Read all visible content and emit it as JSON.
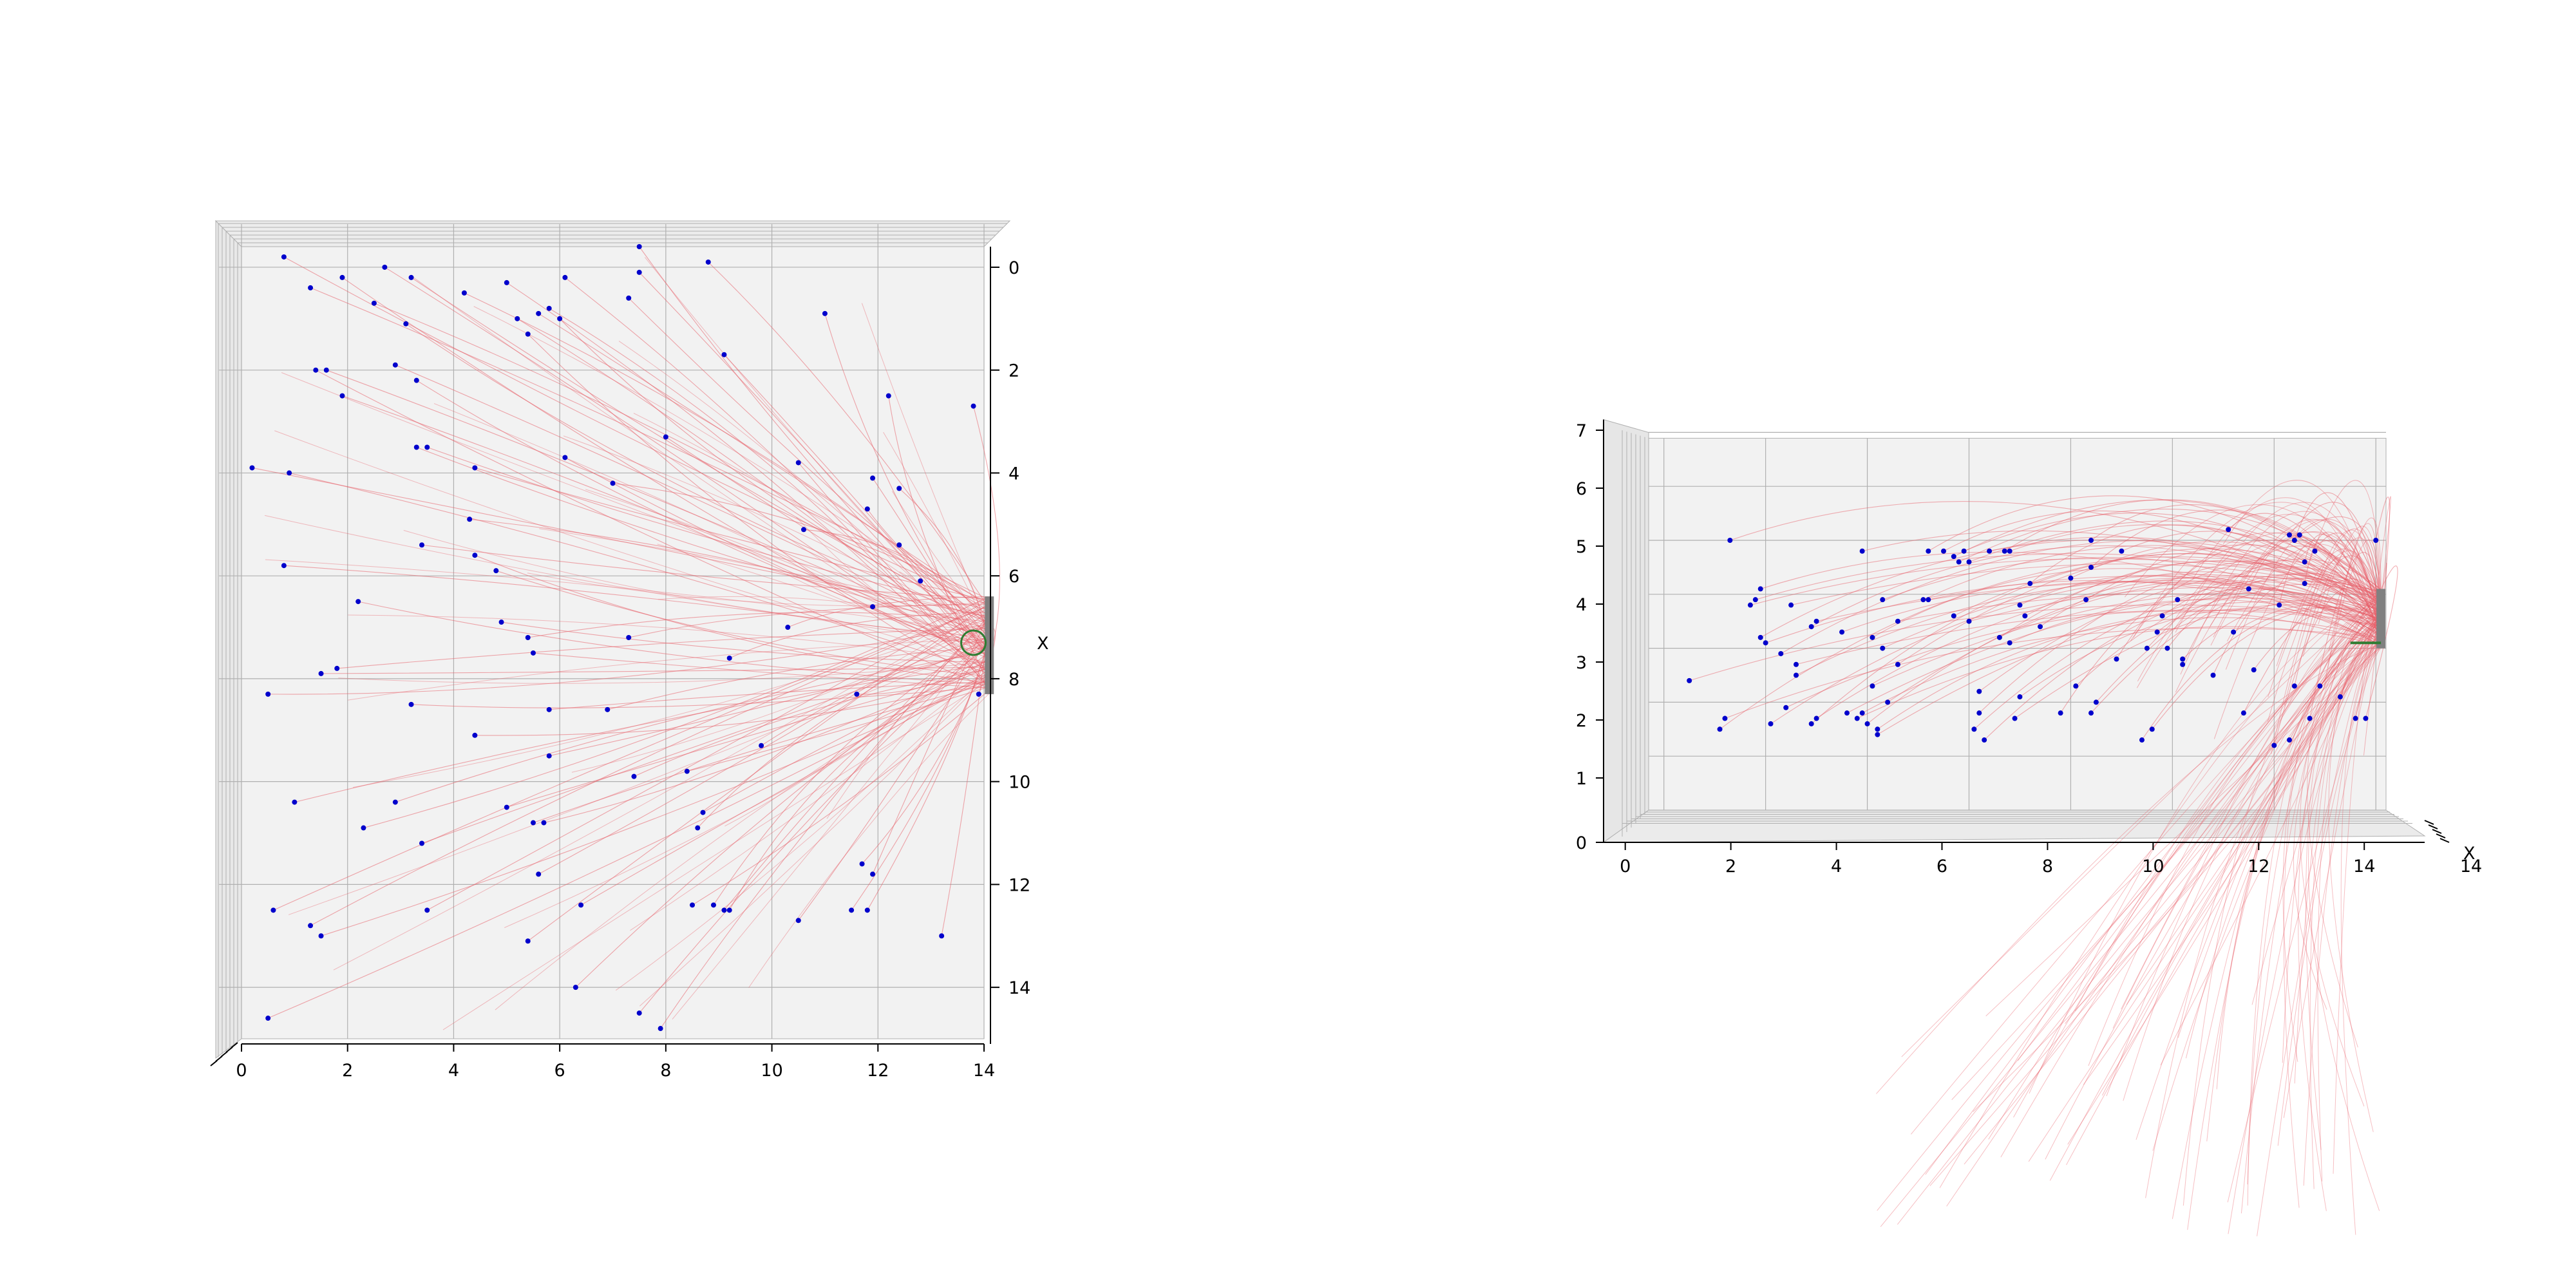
{
  "colors": {
    "pane": "#f2f2f2",
    "grid": "#b0b0b0",
    "point": "#0000cc",
    "trajectory": "#e8606a",
    "sink_bar": "#808080",
    "marker": "#2e7d32",
    "axis": "#000000"
  },
  "chart_data": [
    {
      "type": "scatter",
      "view": "top",
      "description_of_marks": "blue source points with red trajectories converging on a gray bar sink at the right edge",
      "xlim": [
        0,
        14
      ],
      "ylim": [
        0,
        15
      ],
      "x_ticks": [
        "0",
        "2",
        "4",
        "6",
        "8",
        "10",
        "12",
        "14"
      ],
      "y_ticks": [
        "0",
        "2",
        "4",
        "6",
        "8",
        "10",
        "12",
        "14"
      ],
      "y_axis_label": "X",
      "sink": {
        "x": 14.1,
        "y_from": 6.4,
        "y_to": 8.3
      },
      "marker": {
        "type": "circle",
        "x": 13.8,
        "y": 7.3
      },
      "points": [
        [
          0.8,
          -0.2
        ],
        [
          1.3,
          0.4
        ],
        [
          1.9,
          0.2
        ],
        [
          2.7,
          0.0
        ],
        [
          3.2,
          0.2
        ],
        [
          2.5,
          0.7
        ],
        [
          3.1,
          1.1
        ],
        [
          4.2,
          0.5
        ],
        [
          5.0,
          0.3
        ],
        [
          5.2,
          1.0
        ],
        [
          5.4,
          1.3
        ],
        [
          5.8,
          0.8
        ],
        [
          6.1,
          0.2
        ],
        [
          5.6,
          0.9
        ],
        [
          6.0,
          1.0
        ],
        [
          7.3,
          0.6
        ],
        [
          7.5,
          0.1
        ],
        [
          7.5,
          -0.4
        ],
        [
          8.8,
          -0.1
        ],
        [
          11.0,
          0.9
        ],
        [
          1.4,
          2.0
        ],
        [
          1.6,
          2.0
        ],
        [
          1.9,
          2.5
        ],
        [
          2.9,
          1.9
        ],
        [
          3.3,
          2.2
        ],
        [
          9.1,
          1.7
        ],
        [
          12.2,
          2.5
        ],
        [
          13.8,
          2.7
        ],
        [
          8.0,
          3.3
        ],
        [
          0.2,
          3.9
        ],
        [
          0.9,
          4.0
        ],
        [
          3.3,
          3.5
        ],
        [
          3.5,
          3.5
        ],
        [
          4.4,
          3.9
        ],
        [
          6.1,
          3.7
        ],
        [
          7.0,
          4.2
        ],
        [
          10.5,
          3.8
        ],
        [
          11.9,
          4.1
        ],
        [
          12.4,
          4.3
        ],
        [
          11.8,
          4.7
        ],
        [
          10.6,
          5.1
        ],
        [
          12.4,
          5.4
        ],
        [
          4.3,
          4.9
        ],
        [
          3.4,
          5.4
        ],
        [
          4.4,
          5.6
        ],
        [
          0.8,
          5.8
        ],
        [
          4.8,
          5.9
        ],
        [
          12.8,
          6.1
        ],
        [
          2.2,
          6.5
        ],
        [
          4.9,
          6.9
        ],
        [
          11.9,
          6.6
        ],
        [
          10.3,
          7.0
        ],
        [
          5.4,
          7.2
        ],
        [
          5.5,
          7.5
        ],
        [
          7.3,
          7.2
        ],
        [
          9.2,
          7.6
        ],
        [
          1.5,
          7.9
        ],
        [
          1.8,
          7.8
        ],
        [
          0.5,
          8.3
        ],
        [
          3.2,
          8.5
        ],
        [
          5.8,
          8.6
        ],
        [
          6.9,
          8.6
        ],
        [
          11.6,
          8.3
        ],
        [
          13.9,
          8.3
        ],
        [
          4.4,
          9.1
        ],
        [
          9.8,
          9.3
        ],
        [
          5.8,
          9.5
        ],
        [
          7.4,
          9.9
        ],
        [
          8.4,
          9.8
        ],
        [
          1.0,
          10.4
        ],
        [
          2.9,
          10.4
        ],
        [
          5.0,
          10.5
        ],
        [
          5.5,
          10.8
        ],
        [
          5.7,
          10.8
        ],
        [
          8.7,
          10.6
        ],
        [
          2.3,
          10.9
        ],
        [
          3.4,
          11.2
        ],
        [
          8.6,
          10.9
        ],
        [
          11.7,
          11.6
        ],
        [
          5.6,
          11.8
        ],
        [
          11.9,
          11.8
        ],
        [
          0.6,
          12.5
        ],
        [
          1.3,
          12.8
        ],
        [
          1.5,
          13.0
        ],
        [
          3.5,
          12.5
        ],
        [
          6.4,
          12.4
        ],
        [
          8.5,
          12.4
        ],
        [
          8.9,
          12.4
        ],
        [
          9.2,
          12.5
        ],
        [
          9.1,
          12.5
        ],
        [
          10.5,
          12.7
        ],
        [
          11.5,
          12.5
        ],
        [
          11.8,
          12.5
        ],
        [
          13.2,
          13.0
        ],
        [
          5.4,
          13.1
        ],
        [
          6.3,
          14.0
        ],
        [
          7.5,
          14.5
        ],
        [
          7.9,
          14.8
        ],
        [
          0.5,
          14.6
        ]
      ]
    },
    {
      "type": "scatter",
      "view": "side",
      "description_of_marks": "blue source points with red trajectories arcing into a gray bar sink at the right edge",
      "xlim": [
        0,
        14
      ],
      "ylim": [
        0,
        7
      ],
      "x_ticks": [
        "0",
        "2",
        "4",
        "6",
        "8",
        "10",
        "12",
        "14"
      ],
      "y_ticks": [
        "0",
        "1",
        "2",
        "3",
        "4",
        "5",
        "6",
        "7"
      ],
      "x_axis_label": "X",
      "depth_tick_fragment": "14",
      "sink": {
        "x": 14.1,
        "z_from": 3.0,
        "z_to": 4.1
      },
      "marker": {
        "type": "line",
        "x_from": 13.5,
        "x_to": 14.1,
        "z": 3.1
      },
      "points": [
        [
          0.5,
          2.4
        ],
        [
          1.1,
          1.5
        ],
        [
          1.2,
          1.7
        ],
        [
          1.3,
          5.0
        ],
        [
          1.7,
          3.8
        ],
        [
          1.8,
          3.9
        ],
        [
          1.9,
          4.1
        ],
        [
          1.9,
          3.2
        ],
        [
          2.0,
          3.1
        ],
        [
          2.1,
          1.6
        ],
        [
          2.3,
          2.9
        ],
        [
          2.4,
          1.9
        ],
        [
          2.5,
          3.8
        ],
        [
          2.6,
          2.5
        ],
        [
          2.6,
          2.7
        ],
        [
          2.9,
          1.6
        ],
        [
          2.9,
          3.4
        ],
        [
          3.0,
          1.7
        ],
        [
          3.0,
          3.5
        ],
        [
          3.5,
          3.3
        ],
        [
          3.6,
          1.8
        ],
        [
          3.8,
          1.7
        ],
        [
          3.9,
          1.8
        ],
        [
          3.9,
          4.8
        ],
        [
          4.0,
          1.6
        ],
        [
          4.1,
          3.2
        ],
        [
          4.1,
          2.3
        ],
        [
          4.2,
          1.5
        ],
        [
          4.2,
          1.4
        ],
        [
          4.3,
          3.9
        ],
        [
          4.3,
          3.0
        ],
        [
          4.4,
          2.0
        ],
        [
          4.6,
          3.5
        ],
        [
          4.6,
          2.7
        ],
        [
          5.1,
          3.9
        ],
        [
          5.2,
          3.9
        ],
        [
          5.2,
          4.8
        ],
        [
          5.5,
          4.8
        ],
        [
          5.7,
          4.7
        ],
        [
          5.8,
          4.6
        ],
        [
          5.9,
          4.8
        ],
        [
          6.0,
          4.6
        ],
        [
          6.0,
          3.5
        ],
        [
          6.1,
          1.5
        ],
        [
          6.2,
          1.8
        ],
        [
          6.2,
          2.2
        ],
        [
          6.3,
          1.3
        ],
        [
          6.4,
          4.8
        ],
        [
          6.6,
          3.2
        ],
        [
          6.7,
          4.8
        ],
        [
          6.8,
          4.8
        ],
        [
          6.8,
          3.1
        ],
        [
          6.9,
          1.7
        ],
        [
          7.0,
          2.1
        ],
        [
          7.0,
          3.8
        ],
        [
          7.1,
          3.6
        ],
        [
          7.2,
          4.2
        ],
        [
          7.4,
          3.4
        ],
        [
          7.8,
          1.8
        ],
        [
          8.0,
          4.3
        ],
        [
          8.3,
          3.9
        ],
        [
          8.4,
          4.5
        ],
        [
          8.4,
          5.0
        ],
        [
          8.4,
          1.8
        ],
        [
          8.5,
          2.0
        ],
        [
          8.9,
          2.8
        ],
        [
          9.0,
          4.8
        ],
        [
          9.4,
          1.3
        ],
        [
          9.5,
          3.0
        ],
        [
          9.6,
          1.5
        ],
        [
          9.7,
          3.3
        ],
        [
          9.8,
          3.6
        ],
        [
          9.9,
          3.0
        ],
        [
          10.1,
          3.9
        ],
        [
          10.2,
          2.8
        ],
        [
          10.2,
          2.7
        ],
        [
          10.8,
          2.5
        ],
        [
          11.1,
          5.2
        ],
        [
          11.2,
          3.3
        ],
        [
          11.4,
          1.8
        ],
        [
          11.5,
          4.1
        ],
        [
          11.6,
          2.6
        ],
        [
          12.1,
          3.8
        ],
        [
          12.3,
          5.1
        ],
        [
          12.3,
          1.3
        ],
        [
          12.4,
          5.0
        ],
        [
          12.4,
          2.3
        ],
        [
          12.5,
          5.1
        ],
        [
          12.6,
          4.2
        ],
        [
          12.6,
          4.6
        ],
        [
          12.7,
          1.7
        ],
        [
          12.8,
          4.8
        ],
        [
          12.9,
          2.3
        ],
        [
          13.3,
          2.1
        ],
        [
          13.6,
          1.7
        ],
        [
          13.8,
          1.7
        ],
        [
          14.0,
          5.0
        ],
        [
          12.0,
          1.2
        ],
        [
          8.1,
          2.3
        ],
        [
          5.7,
          3.6
        ]
      ]
    }
  ]
}
